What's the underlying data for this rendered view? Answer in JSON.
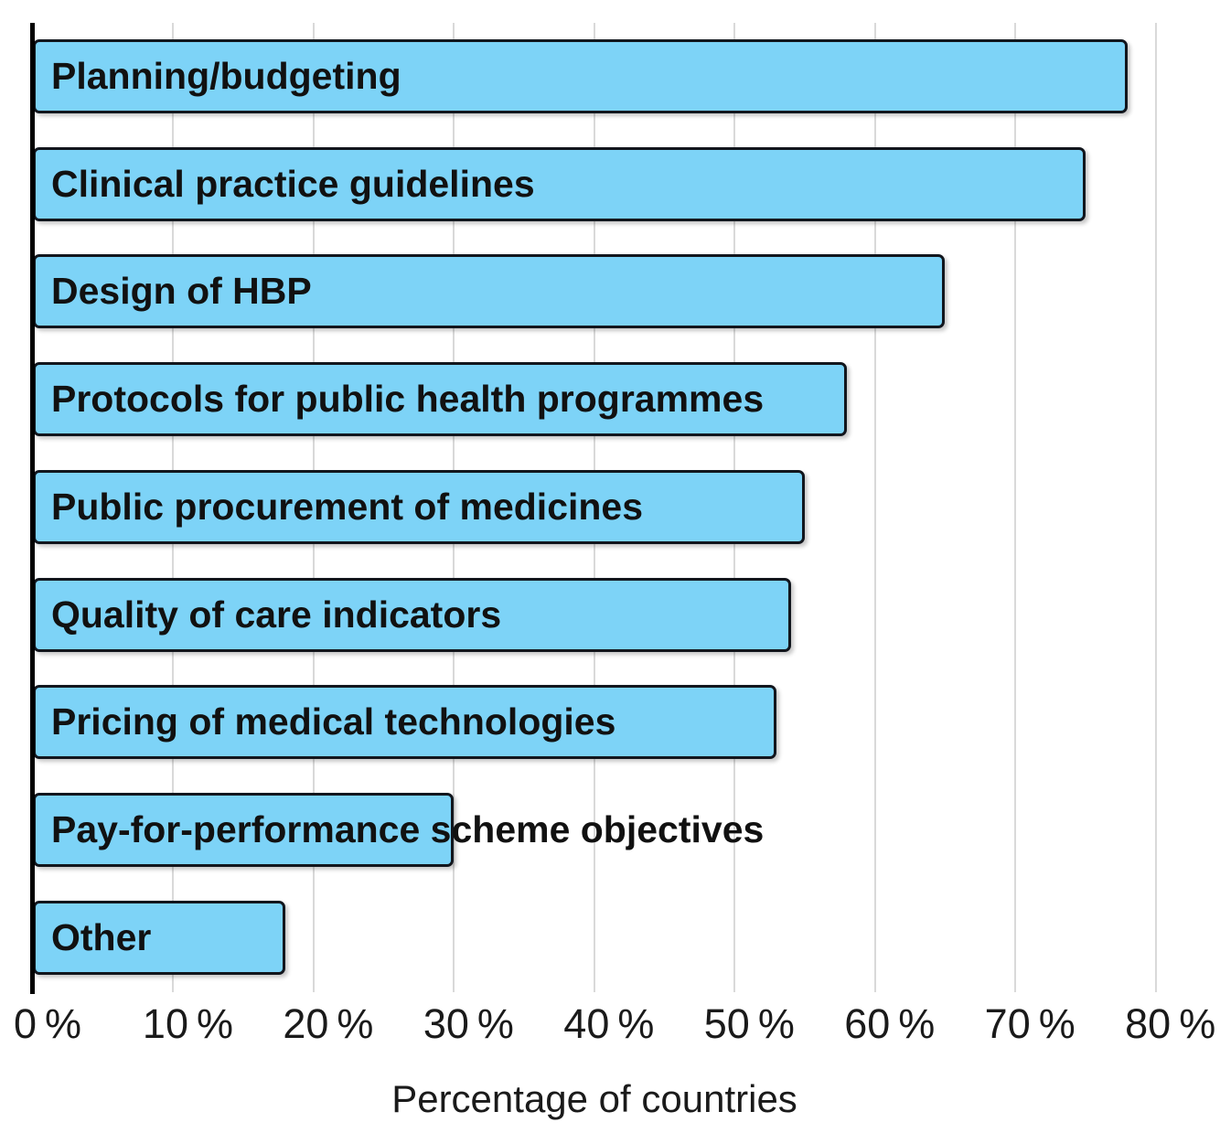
{
  "chart_data": {
    "type": "bar",
    "orientation": "horizontal",
    "title": "",
    "xlabel": "Percentage of countries",
    "ylabel": "",
    "categories": [
      "Planning/budgeting",
      "Clinical practice guidelines",
      "Design of HBP",
      "Protocols for public health programmes",
      "Public procurement of medicines",
      "Quality of care indicators",
      "Pricing of medical technologies",
      "Pay-for-performance scheme objectives",
      "Other"
    ],
    "values": [
      78,
      75,
      65,
      58,
      55,
      54,
      53,
      30,
      18
    ],
    "xlim": [
      0,
      80
    ],
    "tick_step": 10,
    "tick_values": [
      0,
      10,
      20,
      30,
      40,
      50,
      60,
      70,
      80
    ],
    "tick_labels": [
      "0 %",
      "10 %",
      "20 %",
      "30 %",
      "40 %",
      "50 %",
      "60 %",
      "70 %",
      "80 %"
    ],
    "grid": true,
    "legend": "none",
    "colors": {
      "bar_fill": "#7dd3f7",
      "bar_border": "#12161d",
      "gridline": "#d9d9d9",
      "axis_line": "#000000",
      "text": "#111111"
    }
  }
}
